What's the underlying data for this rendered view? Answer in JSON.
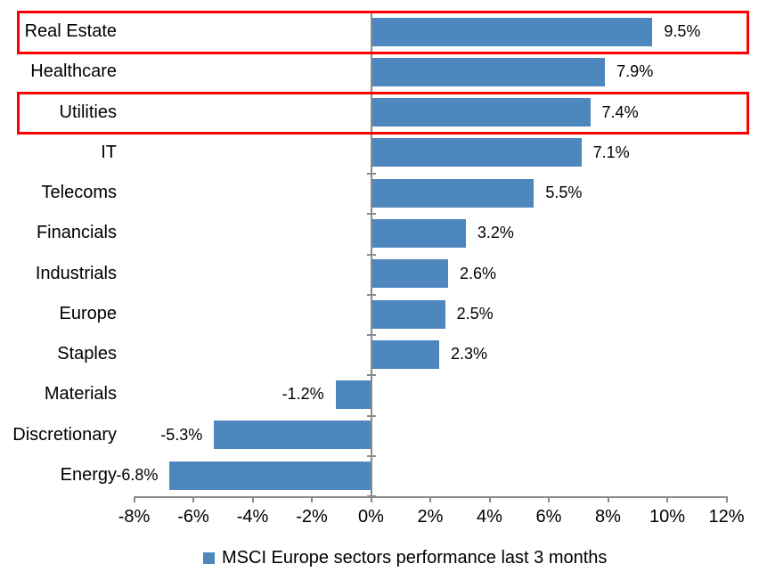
{
  "chart_data": {
    "type": "bar",
    "orientation": "horizontal",
    "title": "",
    "xlabel": "",
    "ylabel": "",
    "categories": [
      "Real Estate",
      "Healthcare",
      "Utilities",
      "IT",
      "Telecoms",
      "Financials",
      "Industrials",
      "Europe",
      "Staples",
      "Materials",
      "Discretionary",
      "Energy"
    ],
    "values": [
      9.5,
      7.9,
      7.4,
      7.1,
      5.5,
      3.2,
      2.6,
      2.5,
      2.3,
      -1.2,
      -5.3,
      -6.8
    ],
    "value_labels": [
      "9.5%",
      "7.9%",
      "7.4%",
      "7.1%",
      "5.5%",
      "3.2%",
      "2.6%",
      "2.5%",
      "2.3%",
      "-1.2%",
      "-5.3%",
      "-6.8%"
    ],
    "x_ticks": [
      "-8%",
      "-6%",
      "-4%",
      "-2%",
      "0%",
      "2%",
      "4%",
      "6%",
      "8%",
      "10%",
      "12%"
    ],
    "xlim": [
      -8,
      12
    ],
    "grid": false,
    "legend": "MSCI Europe sectors performance last 3 months",
    "legend_position": "bottom",
    "bar_color": "#4e86be",
    "axis_color": "#8a8a8a",
    "highlight_color": "#fe0000",
    "highlighted_categories": [
      "Real Estate",
      "Utilities"
    ]
  }
}
